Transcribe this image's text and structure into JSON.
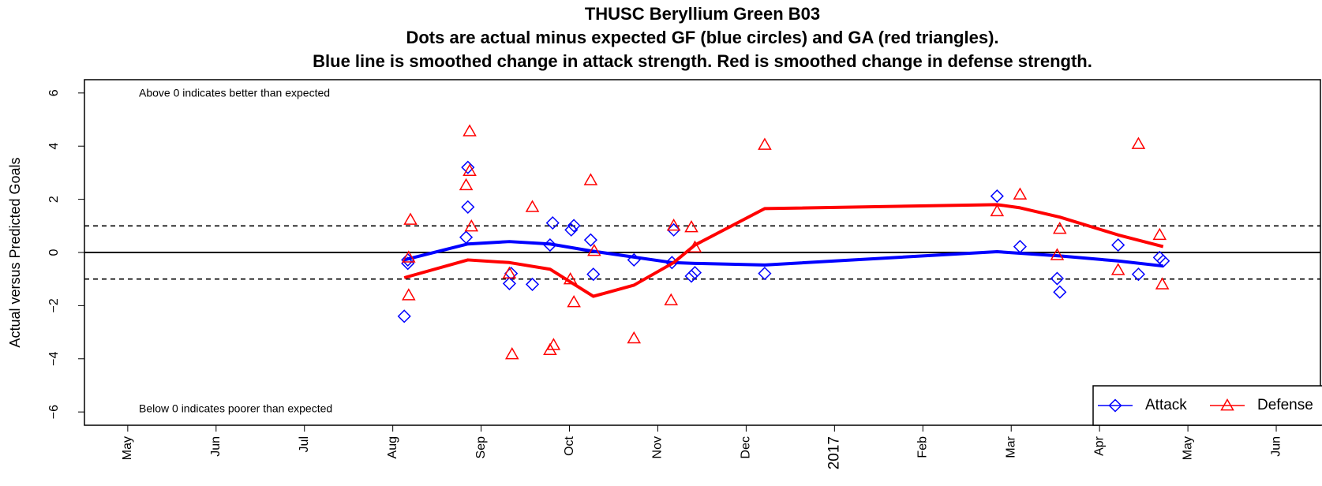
{
  "chart_data": {
    "type": "scatter",
    "title": "THUSC Beryllium Green B03",
    "subtitle": [
      "Dots are actual minus expected GF (blue circles) and GA (red triangles).",
      "Blue line is smoothed change in attack strength. Red is smoothed change in defense strength."
    ],
    "y_label": "Actual versus Predicted Goals",
    "annotations": [
      "Above 0 indicates better than expected",
      "Below 0 indicates poorer than expected"
    ],
    "xlim": [
      -0.49,
      13.5
    ],
    "xticks": [
      {
        "value": 0,
        "label": "May"
      },
      {
        "value": 1,
        "label": "Jun"
      },
      {
        "value": 2,
        "label": "Jul"
      },
      {
        "value": 3,
        "label": "Aug"
      },
      {
        "value": 4,
        "label": "Sep"
      },
      {
        "value": 5,
        "label": "Oct"
      },
      {
        "value": 6,
        "label": "Nov"
      },
      {
        "value": 7,
        "label": "Dec"
      },
      {
        "value": 8,
        "label": "2017"
      },
      {
        "value": 9,
        "label": "Feb"
      },
      {
        "value": 10,
        "label": "Mar"
      },
      {
        "value": 11,
        "label": "Apr"
      },
      {
        "value": 12,
        "label": "May"
      },
      {
        "value": 13,
        "label": "Jun"
      }
    ],
    "ylim": [
      -6.5,
      6.5
    ],
    "yticks": [
      {
        "value": -6,
        "label": "−6"
      },
      {
        "value": -4,
        "label": "−4"
      },
      {
        "value": -2,
        "label": "−2"
      },
      0,
      2,
      4,
      6
    ],
    "hlines": [
      {
        "value": 0,
        "style": "solid"
      },
      {
        "value": 1,
        "style": "dashed"
      },
      {
        "value": -1,
        "style": "dashed"
      }
    ],
    "legend": "bottomright",
    "series": [
      {
        "name": "Attack",
        "color": "#0000ff",
        "marker": "diamond",
        "x": [
          3.13,
          3.17,
          3.17,
          3.83,
          3.85,
          3.85,
          4.32,
          4.34,
          4.58,
          4.78,
          4.81,
          5.02,
          5.05,
          5.24,
          5.27,
          5.73,
          6.18,
          6.16,
          6.38,
          6.42,
          7.21,
          9.84,
          10.1,
          10.52,
          10.55,
          11.21,
          11.44,
          11.68,
          11.72
        ],
        "values": [
          -2.4,
          -0.41,
          -0.28,
          0.57,
          1.71,
          3.2,
          -1.17,
          -0.79,
          -1.2,
          0.28,
          1.11,
          0.85,
          1.01,
          0.47,
          -0.82,
          -0.28,
          0.85,
          -0.38,
          -0.89,
          -0.76,
          -0.79,
          2.12,
          0.22,
          -0.98,
          -1.49,
          0.28,
          -0.82,
          -0.19,
          -0.32
        ],
        "smooth": {
          "x": [
            3.13,
            3.85,
            4.32,
            4.78,
            5.24,
            6.16,
            6.42,
            7.21,
            9.84,
            10.55,
            11.21,
            11.72
          ],
          "values": [
            -0.28,
            0.32,
            0.41,
            0.32,
            0.06,
            -0.38,
            -0.41,
            -0.47,
            0.03,
            -0.13,
            -0.32,
            -0.51
          ]
        }
      },
      {
        "name": "Defense",
        "color": "#ff0000",
        "marker": "triangle",
        "x": [
          3.2,
          3.18,
          3.18,
          3.87,
          3.83,
          3.87,
          3.89,
          4.35,
          4.32,
          4.58,
          4.78,
          4.82,
          5.01,
          5.05,
          5.24,
          5.28,
          5.73,
          6.15,
          6.18,
          6.38,
          6.42,
          7.21,
          9.84,
          10.1,
          10.52,
          10.55,
          11.21,
          11.44,
          11.68,
          11.71
        ],
        "values": [
          1.23,
          -1.61,
          -0.19,
          4.56,
          2.53,
          3.07,
          0.98,
          -3.83,
          -0.79,
          1.71,
          -3.67,
          -3.48,
          -1.01,
          -1.87,
          2.72,
          0.06,
          -3.23,
          -1.8,
          1.01,
          0.95,
          0.19,
          4.05,
          1.55,
          2.18,
          -0.1,
          0.89,
          -0.66,
          4.08,
          0.66,
          -1.2
        ],
        "smooth": {
          "x": [
            3.13,
            3.85,
            4.32,
            4.78,
            5.27,
            5.73,
            6.18,
            6.42,
            7.21,
            9.84,
            10.1,
            10.55,
            11.21,
            11.72
          ],
          "values": [
            -0.95,
            -0.28,
            -0.38,
            -0.63,
            -1.65,
            -1.23,
            -0.38,
            0.28,
            1.65,
            1.8,
            1.68,
            1.33,
            0.66,
            0.22
          ]
        }
      }
    ]
  }
}
